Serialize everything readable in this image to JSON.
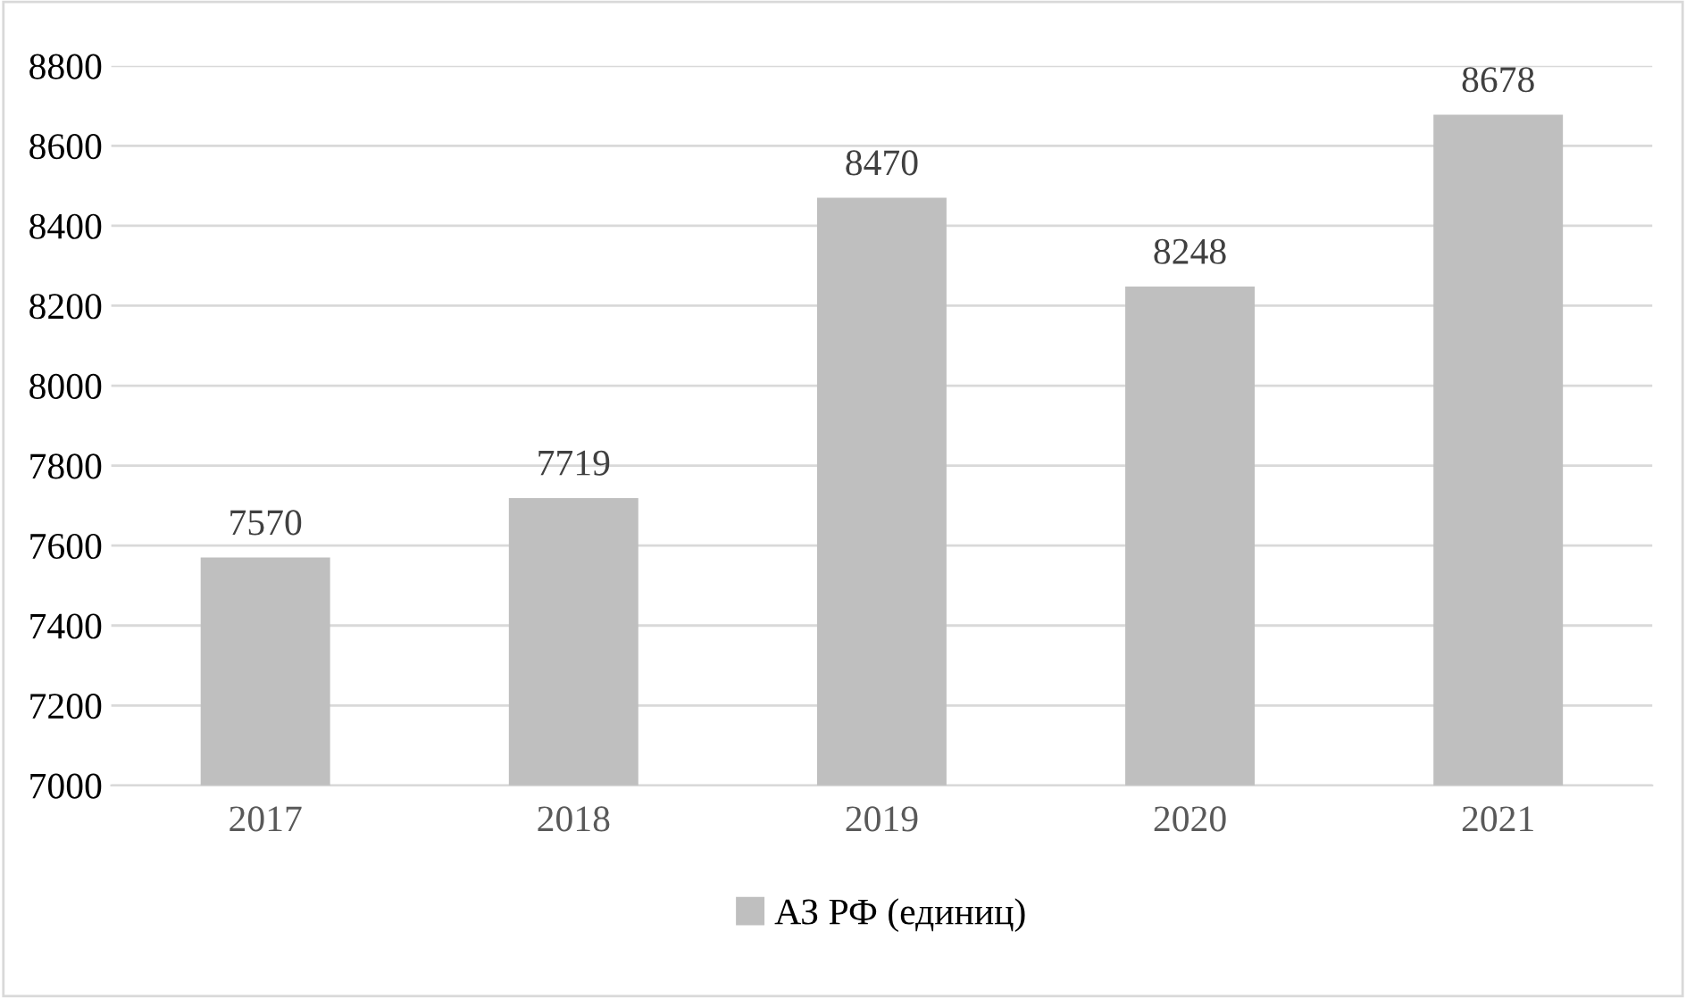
{
  "chart_data": {
    "type": "bar",
    "categories": [
      "2017",
      "2018",
      "2019",
      "2020",
      "2021"
    ],
    "series": [
      {
        "name": "АЗ РФ (единиц)",
        "color": "#bfbfbf",
        "values": [
          7570,
          7719,
          8470,
          8248,
          8678
        ]
      }
    ],
    "ylim": [
      7000,
      8800
    ],
    "yticks": [
      7000,
      7200,
      7400,
      7600,
      7800,
      8000,
      8200,
      8400,
      8600,
      8800
    ],
    "grid": "y",
    "legend": "bottom",
    "data_labels": true
  }
}
